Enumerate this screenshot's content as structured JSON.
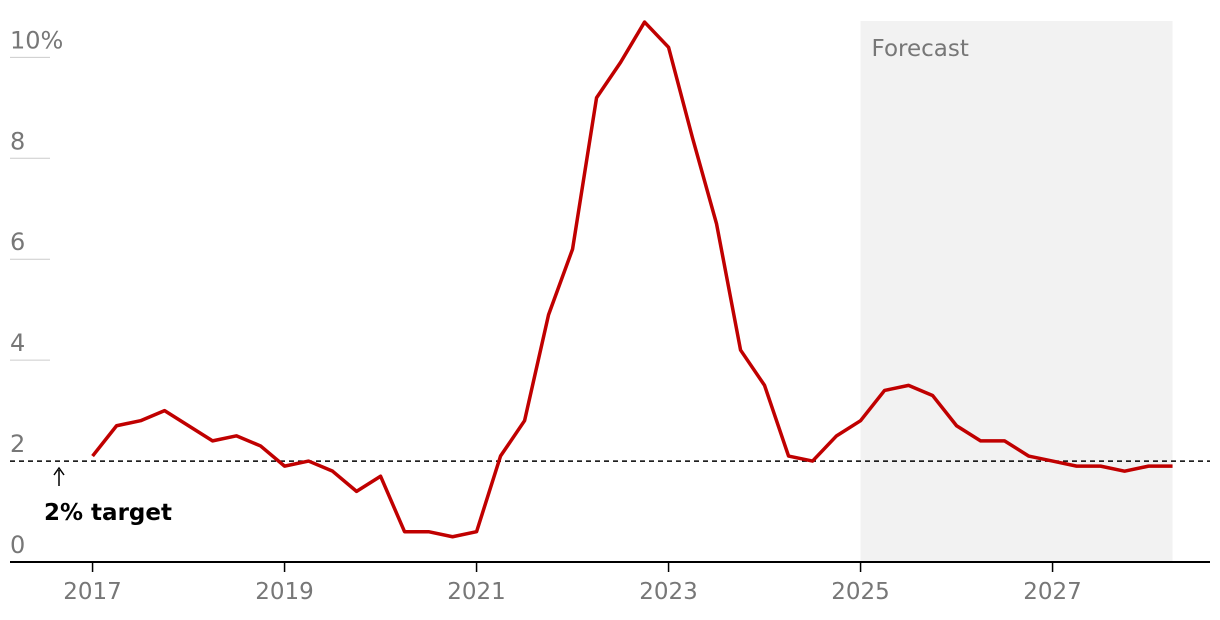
{
  "chart_data": {
    "type": "line",
    "x": [
      2017,
      2017.25,
      2017.5,
      2017.75,
      2018,
      2018.25,
      2018.5,
      2018.75,
      2019,
      2019.25,
      2019.5,
      2019.75,
      2020,
      2020.25,
      2020.5,
      2020.75,
      2021,
      2021.25,
      2021.5,
      2021.75,
      2022,
      2022.25,
      2022.5,
      2022.75,
      2023,
      2023.25,
      2023.5,
      2023.75,
      2024,
      2024.25,
      2024.5,
      2024.75,
      2025,
      2025.25,
      2025.5,
      2025.75,
      2026,
      2026.25,
      2026.5,
      2026.75,
      2027,
      2027.25,
      2027.5,
      2027.75,
      2028,
      2028.25
    ],
    "series": [
      {
        "color": "#c00000",
        "values": [
          2.1,
          2.7,
          2.8,
          3.0,
          2.7,
          2.4,
          2.5,
          2.3,
          1.9,
          2.0,
          1.8,
          1.4,
          1.7,
          0.6,
          0.6,
          0.5,
          0.6,
          2.1,
          2.8,
          4.9,
          6.2,
          9.2,
          9.9,
          10.7,
          10.2,
          8.4,
          6.7,
          4.2,
          3.5,
          2.1,
          2.0,
          2.5,
          2.8,
          3.4,
          3.5,
          3.3,
          2.7,
          2.4,
          2.4,
          2.1,
          2.0,
          1.9,
          1.9,
          1.8,
          1.9,
          1.9
        ]
      }
    ],
    "xlim": [
      2016.14,
      2028.64
    ],
    "ylim": [
      0,
      10.8
    ],
    "xticks": [
      2017,
      2019,
      2021,
      2023,
      2025,
      2027
    ],
    "yticks": [
      0,
      2,
      4,
      6,
      8,
      {
        "value": 10,
        "label": "10%"
      }
    ],
    "target": {
      "value": 2,
      "label": "2% target"
    },
    "forecast": {
      "label": "Forecast",
      "range": [
        2025,
        2028.25
      ]
    }
  }
}
